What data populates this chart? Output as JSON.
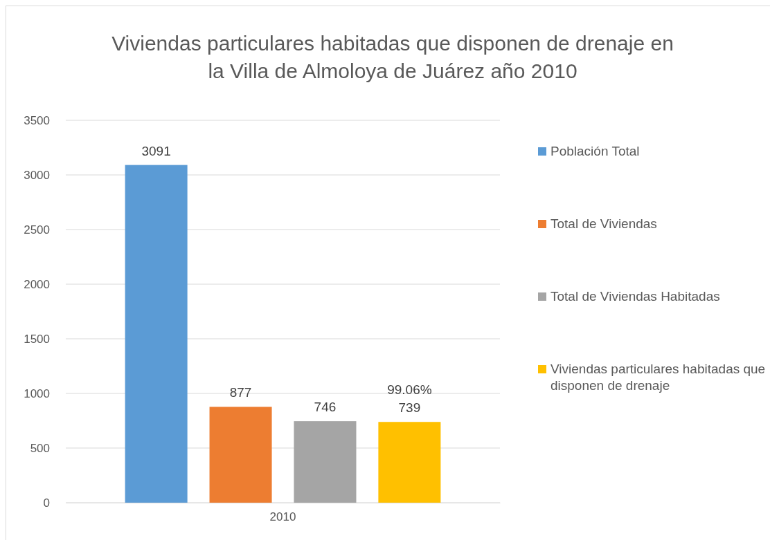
{
  "chart_data": {
    "type": "bar",
    "title": "Viviendas particulares habitadas que disponen de drenaje en la Villa de Almoloya de Juárez año 2010",
    "categories": [
      "2010"
    ],
    "series": [
      {
        "name": "Población Total",
        "color": "#5b9bd5",
        "values": [
          3091
        ]
      },
      {
        "name": "Total de Viviendas",
        "color": "#ed7d31",
        "values": [
          877
        ]
      },
      {
        "name": "Total de Viviendas Habitadas",
        "color": "#a5a5a5",
        "values": [
          746
        ]
      },
      {
        "name": "Viviendas particulares habitadas que disponen de drenaje",
        "color": "#ffc000",
        "values": [
          739
        ]
      }
    ],
    "ylim": [
      0,
      3500
    ],
    "yticks": [
      0,
      500,
      1000,
      1500,
      2000,
      2500,
      3000,
      3500
    ],
    "grid": "y",
    "legend": "right",
    "data_labels": true,
    "annotations": [
      "99.06%"
    ]
  }
}
